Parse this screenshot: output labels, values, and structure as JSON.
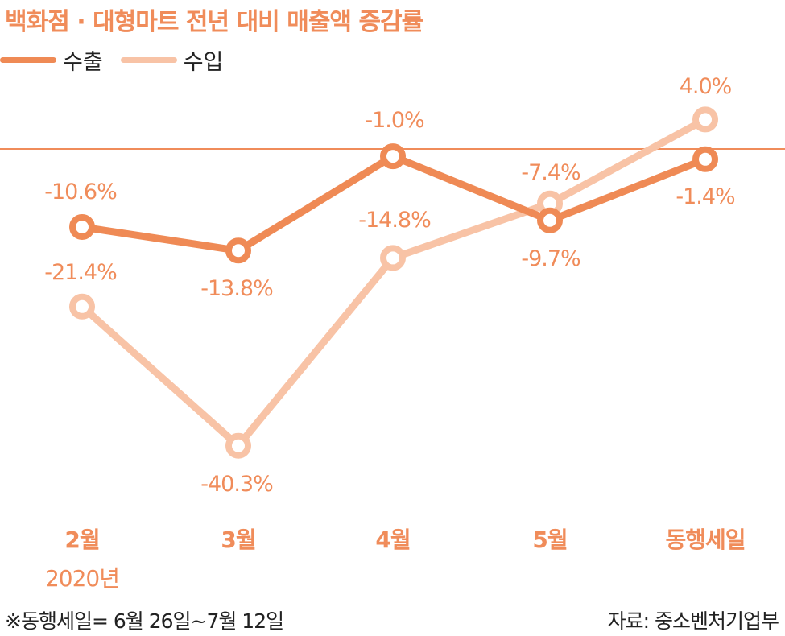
{
  "title": "백화점 · 대형마트 전년 대비 매출액 증감률",
  "footnote": "※동행세일= 6월 26일~7월 12일",
  "source": "자료: 중소벤처기업부",
  "colors": {
    "export": "#ef8a55",
    "import": "#f8c3a6",
    "zero_line": "#f08c5a",
    "text_accent": "#f08c5a"
  },
  "chart_data": {
    "type": "line",
    "title": "백화점 · 대형마트 전년 대비 매출액 증감률",
    "categories": [
      "2월",
      "3월",
      "4월",
      "5월",
      "동행세일"
    ],
    "category_sublabels": [
      "2020년",
      "",
      "",
      "",
      ""
    ],
    "unit": "%",
    "series": [
      {
        "name": "수출",
        "values": [
          -10.6,
          -13.8,
          -1.0,
          -9.7,
          -1.4
        ],
        "labels": [
          "-10.6%",
          "-13.8%",
          "-1.0%",
          "-9.7%",
          "-1.4%"
        ]
      },
      {
        "name": "수입",
        "values": [
          -21.4,
          -40.3,
          -14.8,
          -7.4,
          4.0
        ],
        "labels": [
          "-21.4%",
          "-40.3%",
          "-14.8%",
          "-7.4%",
          "4.0%"
        ]
      }
    ],
    "ylim": [
      -42,
      6
    ],
    "reference_line": 0,
    "legend": "top-left",
    "grid": false
  }
}
